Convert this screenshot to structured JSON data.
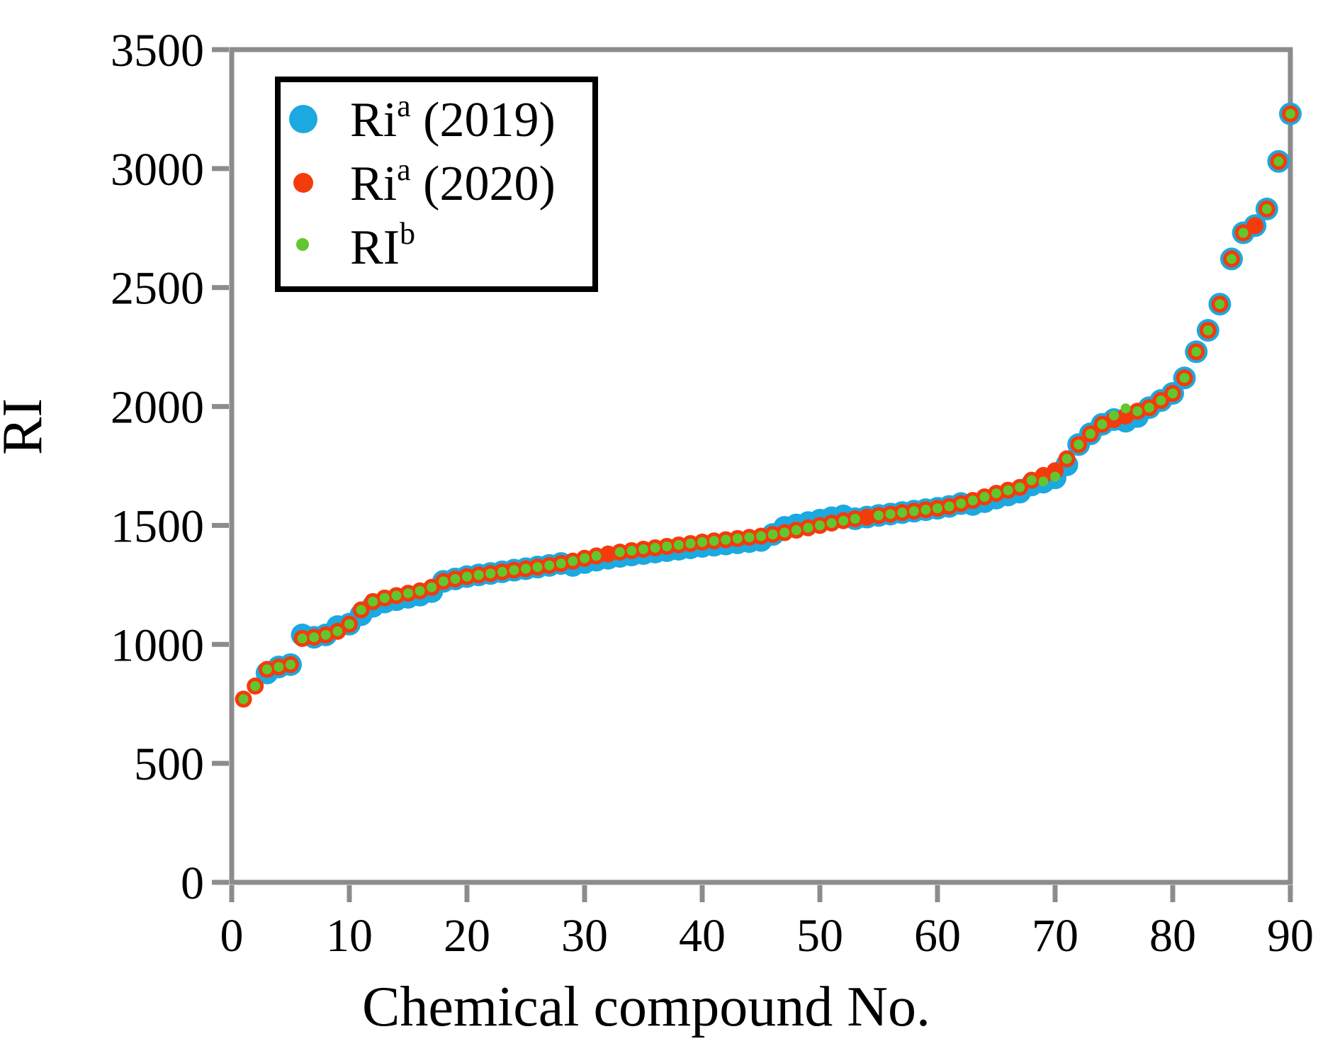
{
  "axes": {
    "x": {
      "label": "Chemical compound No.",
      "range": [
        0,
        90
      ],
      "ticks": [
        0,
        10,
        20,
        30,
        40,
        50,
        60,
        70,
        80,
        90
      ]
    },
    "y": {
      "label": "RI",
      "range": [
        0,
        3500
      ],
      "ticks": [
        0,
        500,
        1000,
        1500,
        2000,
        2500,
        3000,
        3500
      ]
    }
  },
  "legend": {
    "items": [
      {
        "name": "ri-2019",
        "base": "Ri",
        "sup": "a",
        "suffix": " (2019)",
        "color": "#1CA9DF"
      },
      {
        "name": "ri-2020",
        "base": "Ri",
        "sup": "a",
        "suffix": " (2020)",
        "color": "#F43B0C"
      },
      {
        "name": "ri-b",
        "base": "RI",
        "sup": "b",
        "suffix": "",
        "color": "#62C72E"
      }
    ]
  },
  "colors": {
    "axis_gray": "#8C8C8C",
    "legend_border": "#000000",
    "blue": "#1CA9DF",
    "red": "#F43B0C",
    "green": "#62C72E"
  },
  "chart_data": {
    "type": "scatter",
    "title": "",
    "xlabel": "Chemical compound No.",
    "ylabel": "RI",
    "xlim": [
      0,
      90
    ],
    "ylim": [
      0,
      3500
    ],
    "x_tick_step": 10,
    "y_tick_step": 500,
    "grid": false,
    "legend_position": "upper-left",
    "x": [
      1,
      2,
      3,
      4,
      5,
      6,
      7,
      8,
      9,
      10,
      11,
      12,
      13,
      14,
      15,
      16,
      17,
      18,
      19,
      20,
      21,
      22,
      23,
      24,
      25,
      26,
      27,
      28,
      29,
      30,
      31,
      32,
      33,
      34,
      35,
      36,
      37,
      38,
      39,
      40,
      41,
      42,
      43,
      44,
      45,
      46,
      47,
      48,
      49,
      50,
      51,
      52,
      53,
      54,
      55,
      56,
      57,
      58,
      59,
      60,
      61,
      62,
      63,
      64,
      65,
      66,
      67,
      68,
      69,
      70,
      71,
      72,
      73,
      74,
      75,
      76,
      77,
      78,
      79,
      80,
      81,
      82,
      83,
      84,
      85,
      86,
      87,
      88,
      89,
      90
    ],
    "series": [
      {
        "name": "Ri^a (2019)",
        "color": "#1CA9DF",
        "marker_radius": 16,
        "values": [
          null,
          null,
          880,
          905,
          915,
          1040,
          1030,
          1040,
          1075,
          1085,
          1125,
          1160,
          1178,
          1188,
          1198,
          1207,
          1222,
          1265,
          1275,
          1285,
          1292,
          1298,
          1305,
          1312,
          1318,
          1325,
          1332,
          1340,
          1332,
          1344,
          1354,
          1362,
          1370,
          1376,
          1382,
          1388,
          1394,
          1400,
          1406,
          1412,
          1417,
          1422,
          1427,
          1432,
          1437,
          1462,
          1492,
          1502,
          1512,
          1522,
          1532,
          1540,
          1528,
          1535,
          1542,
          1548,
          1554,
          1560,
          1566,
          1572,
          1580,
          1592,
          1588,
          1600,
          1615,
          1628,
          1640,
          1670,
          1682,
          1700,
          1755,
          1840,
          1885,
          1925,
          1945,
          1938,
          1958,
          1995,
          2025,
          2055,
          2120,
          2230,
          2320,
          2430,
          2620,
          2730,
          2760,
          2830,
          3030,
          3230
        ]
      },
      {
        "name": "Ri^a (2020)",
        "color": "#F43B0C",
        "marker_radius": 12,
        "values": [
          770,
          825,
          895,
          905,
          915,
          1025,
          1030,
          1040,
          1055,
          1085,
          1145,
          1180,
          1195,
          1205,
          1215,
          1225,
          1240,
          1265,
          1275,
          1285,
          1292,
          1298,
          1305,
          1312,
          1318,
          1325,
          1332,
          1340,
          1350,
          1362,
          1372,
          1380,
          1388,
          1394,
          1400,
          1406,
          1412,
          1418,
          1424,
          1430,
          1435,
          1440,
          1445,
          1450,
          1455,
          1462,
          1470,
          1480,
          1490,
          1500,
          1510,
          1520,
          1528,
          1535,
          1542,
          1548,
          1554,
          1560,
          1566,
          1572,
          1580,
          1592,
          1605,
          1620,
          1635,
          1648,
          1660,
          1690,
          1710,
          1730,
          1780,
          1840,
          1885,
          1925,
          1945,
          1960,
          1980,
          1995,
          2025,
          2055,
          2120,
          2230,
          2320,
          2430,
          2620,
          2730,
          2760,
          2830,
          3030,
          3230
        ]
      },
      {
        "name": "RI^b",
        "color": "#62C72E",
        "marker_radius": 7,
        "values": [
          770,
          825,
          895,
          905,
          915,
          1025,
          1030,
          1040,
          1055,
          1085,
          1145,
          1180,
          1195,
          1205,
          1215,
          1225,
          1240,
          1265,
          1275,
          1285,
          1292,
          1298,
          1305,
          1312,
          1318,
          1325,
          1332,
          1340,
          1350,
          1362,
          1372,
          null,
          1388,
          1394,
          1400,
          1406,
          1412,
          1418,
          1424,
          1430,
          1435,
          1440,
          1445,
          1450,
          1455,
          1462,
          1470,
          1480,
          1490,
          1500,
          1510,
          1520,
          1528,
          null,
          1542,
          1548,
          1554,
          1560,
          1566,
          1572,
          1580,
          1592,
          1605,
          1620,
          1635,
          1648,
          1660,
          1690,
          1685,
          1705,
          1780,
          1840,
          1885,
          1925,
          1962,
          1992,
          1980,
          1995,
          2025,
          2055,
          2120,
          2230,
          2320,
          2430,
          2620,
          2730,
          null,
          2830,
          3030,
          3230
        ]
      }
    ]
  }
}
